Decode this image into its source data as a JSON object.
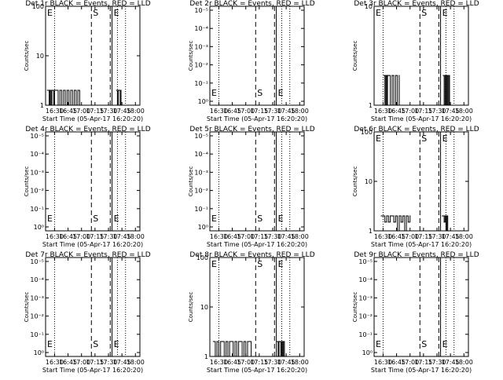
{
  "page": {
    "background": "#ffffff",
    "foreground": "#000000"
  },
  "x_axis": {
    "ticks": [
      "16:30",
      "16:45",
      "17:00",
      "17:15",
      "17:30",
      "17:45",
      "18:00"
    ],
    "xlabel": "Start Time (05-Apr-17 16:20:20)"
  },
  "ylabel": "Counts/sec",
  "markers": {
    "s_label": "S",
    "e_label": "E"
  },
  "chart_data": [
    {
      "type": "line",
      "title": "Det 1r BLACK = Events, RED = LLD",
      "yscale": "log",
      "ylim": [
        1,
        100
      ],
      "ytick_labels": [
        "1",
        "10",
        "100"
      ],
      "series": [
        {
          "color": "#000000",
          "segments": [
            {
              "x": [
                "16:22",
                "16:24",
                "16:25",
                "16:26",
                "16:27",
                "16:28",
                "16:29",
                "16:30",
                "16:32",
                "16:34",
                "16:36",
                "16:38",
                "16:40",
                "16:42",
                "16:44",
                "16:46",
                "16:48",
                "16:50",
                "16:52",
                "16:54",
                "16:56",
                "16:58"
              ],
              "y": [
                2,
                1,
                2,
                1,
                2,
                2,
                1,
                2,
                2,
                1,
                2,
                1,
                2,
                1,
                2,
                1,
                2,
                1,
                2,
                1,
                2,
                1
              ]
            },
            {
              "x": [
                "17:39",
                "17:40",
                "17:41",
                "17:42",
                "17:43",
                "17:44"
              ],
              "y": [
                2,
                1,
                2,
                2,
                1,
                2
              ]
            }
          ]
        }
      ]
    },
    {
      "type": "line",
      "title": "Det 2r BLACK = Events, RED = LLD",
      "yscale": "log",
      "ylim": [
        1,
        1.000001
      ],
      "ytick_labels": [
        "10⁰",
        "10⁻¹",
        "10⁻²",
        "10⁻³",
        "10⁻⁴",
        "10⁻⁵"
      ],
      "series": []
    },
    {
      "type": "line",
      "title": "Det 3r BLACK = Events, RED = LLD",
      "yscale": "log",
      "ylim": [
        1,
        10
      ],
      "ytick_labels": [
        "1",
        "10"
      ],
      "series": [
        {
          "color": "#000000",
          "segments": [
            {
              "x": [
                "16:31",
                "16:32",
                "16:33",
                "16:34",
                "16:35",
                "16:36",
                "16:38",
                "16:40",
                "16:42",
                "16:44",
                "16:46",
                "16:48"
              ],
              "y": [
                2,
                1,
                2,
                1,
                2,
                2,
                1,
                2,
                1,
                2,
                1,
                2
              ]
            },
            {
              "x": [
                "17:37",
                "17:38",
                "17:39",
                "17:40",
                "17:41",
                "17:42",
                "17:43",
                "17:44",
                "17:45"
              ],
              "y": [
                2,
                1,
                2,
                1,
                2,
                1,
                2,
                1,
                1
              ]
            }
          ]
        }
      ]
    },
    {
      "type": "line",
      "title": "Det 4r BLACK = Events, RED = LLD",
      "yscale": "log",
      "ylim": [
        1,
        1.000001
      ],
      "ytick_labels": [
        "10⁰",
        "10⁻¹",
        "10⁻²",
        "10⁻³",
        "10⁻⁴",
        "10⁻⁵"
      ],
      "series": []
    },
    {
      "type": "line",
      "title": "Det 5r BLACK = Events, RED = LLD",
      "yscale": "log",
      "ylim": [
        1,
        1.000001
      ],
      "ytick_labels": [
        "10⁰",
        "10⁻¹",
        "10⁻²",
        "10⁻³",
        "10⁻⁴",
        "10⁻⁵"
      ],
      "series": []
    },
    {
      "type": "line",
      "title": "Det 6r BLACK = Events, RED = LLD",
      "yscale": "log",
      "ylim": [
        1,
        100
      ],
      "ytick_labels": [
        "1",
        "10",
        "100"
      ],
      "series": [
        {
          "color": "#000000",
          "segments": [
            {
              "x": [
                "16:28",
                "16:30",
                "16:32",
                "16:34",
                "16:36",
                "16:38",
                "16:40",
                "16:42",
                "16:44",
                "16:46",
                "16:48",
                "16:50",
                "16:52",
                "16:54",
                "16:56",
                "16:58",
                "17:00"
              ],
              "y": [
                2,
                2,
                1.5,
                2,
                1.5,
                2,
                2,
                1.5,
                2,
                1,
                2,
                1.5,
                2,
                1,
                2,
                1.5,
                2
              ]
            },
            {
              "x": [
                "17:36",
                "17:37",
                "17:38",
                "17:39",
                "17:40",
                "17:41",
                "17:42"
              ],
              "y": [
                2,
                2,
                1.5,
                2,
                1,
                2,
                1
              ]
            }
          ]
        }
      ]
    },
    {
      "type": "line",
      "title": "Det 7r BLACK = Events, RED = LLD",
      "yscale": "log",
      "ylim": [
        1,
        1.000001
      ],
      "ytick_labels": [
        "10⁰",
        "10⁻¹",
        "10⁻²",
        "10⁻³",
        "10⁻⁴",
        "10⁻⁵"
      ],
      "series": []
    },
    {
      "type": "line",
      "title": "Det 8r BLACK = Events, RED = LLD",
      "yscale": "log",
      "ylim": [
        1,
        100
      ],
      "ytick_labels": [
        "1",
        "10",
        "100"
      ],
      "series": [
        {
          "color": "#000000",
          "segments": [
            {
              "x": [
                "16:24",
                "16:26",
                "16:28",
                "16:30",
                "16:32",
                "16:34",
                "16:36",
                "16:38",
                "16:40",
                "16:42",
                "16:44",
                "16:46",
                "16:48",
                "16:50",
                "16:52",
                "16:54",
                "16:56",
                "16:58",
                "17:00",
                "17:02",
                "17:04",
                "17:06"
              ],
              "y": [
                2,
                1,
                2,
                1,
                2,
                2,
                1,
                2,
                1,
                2,
                2,
                1,
                2,
                1,
                2,
                2,
                1,
                2,
                1,
                2,
                2,
                1
              ]
            },
            {
              "x": [
                "17:35",
                "17:36",
                "17:37",
                "17:38",
                "17:39",
                "17:40",
                "17:41",
                "17:42",
                "17:43",
                "17:44"
              ],
              "y": [
                2,
                1,
                2,
                2,
                1,
                2,
                1,
                2,
                1,
                1
              ]
            }
          ]
        }
      ]
    },
    {
      "type": "line",
      "title": "Det 9r BLACK = Events, RED = LLD",
      "yscale": "log",
      "ylim": [
        1,
        1.000001
      ],
      "ytick_labels": [
        "10⁰",
        "10⁻¹",
        "10⁻²",
        "10⁻³",
        "10⁻⁴",
        "10⁻⁵"
      ],
      "series": []
    }
  ]
}
